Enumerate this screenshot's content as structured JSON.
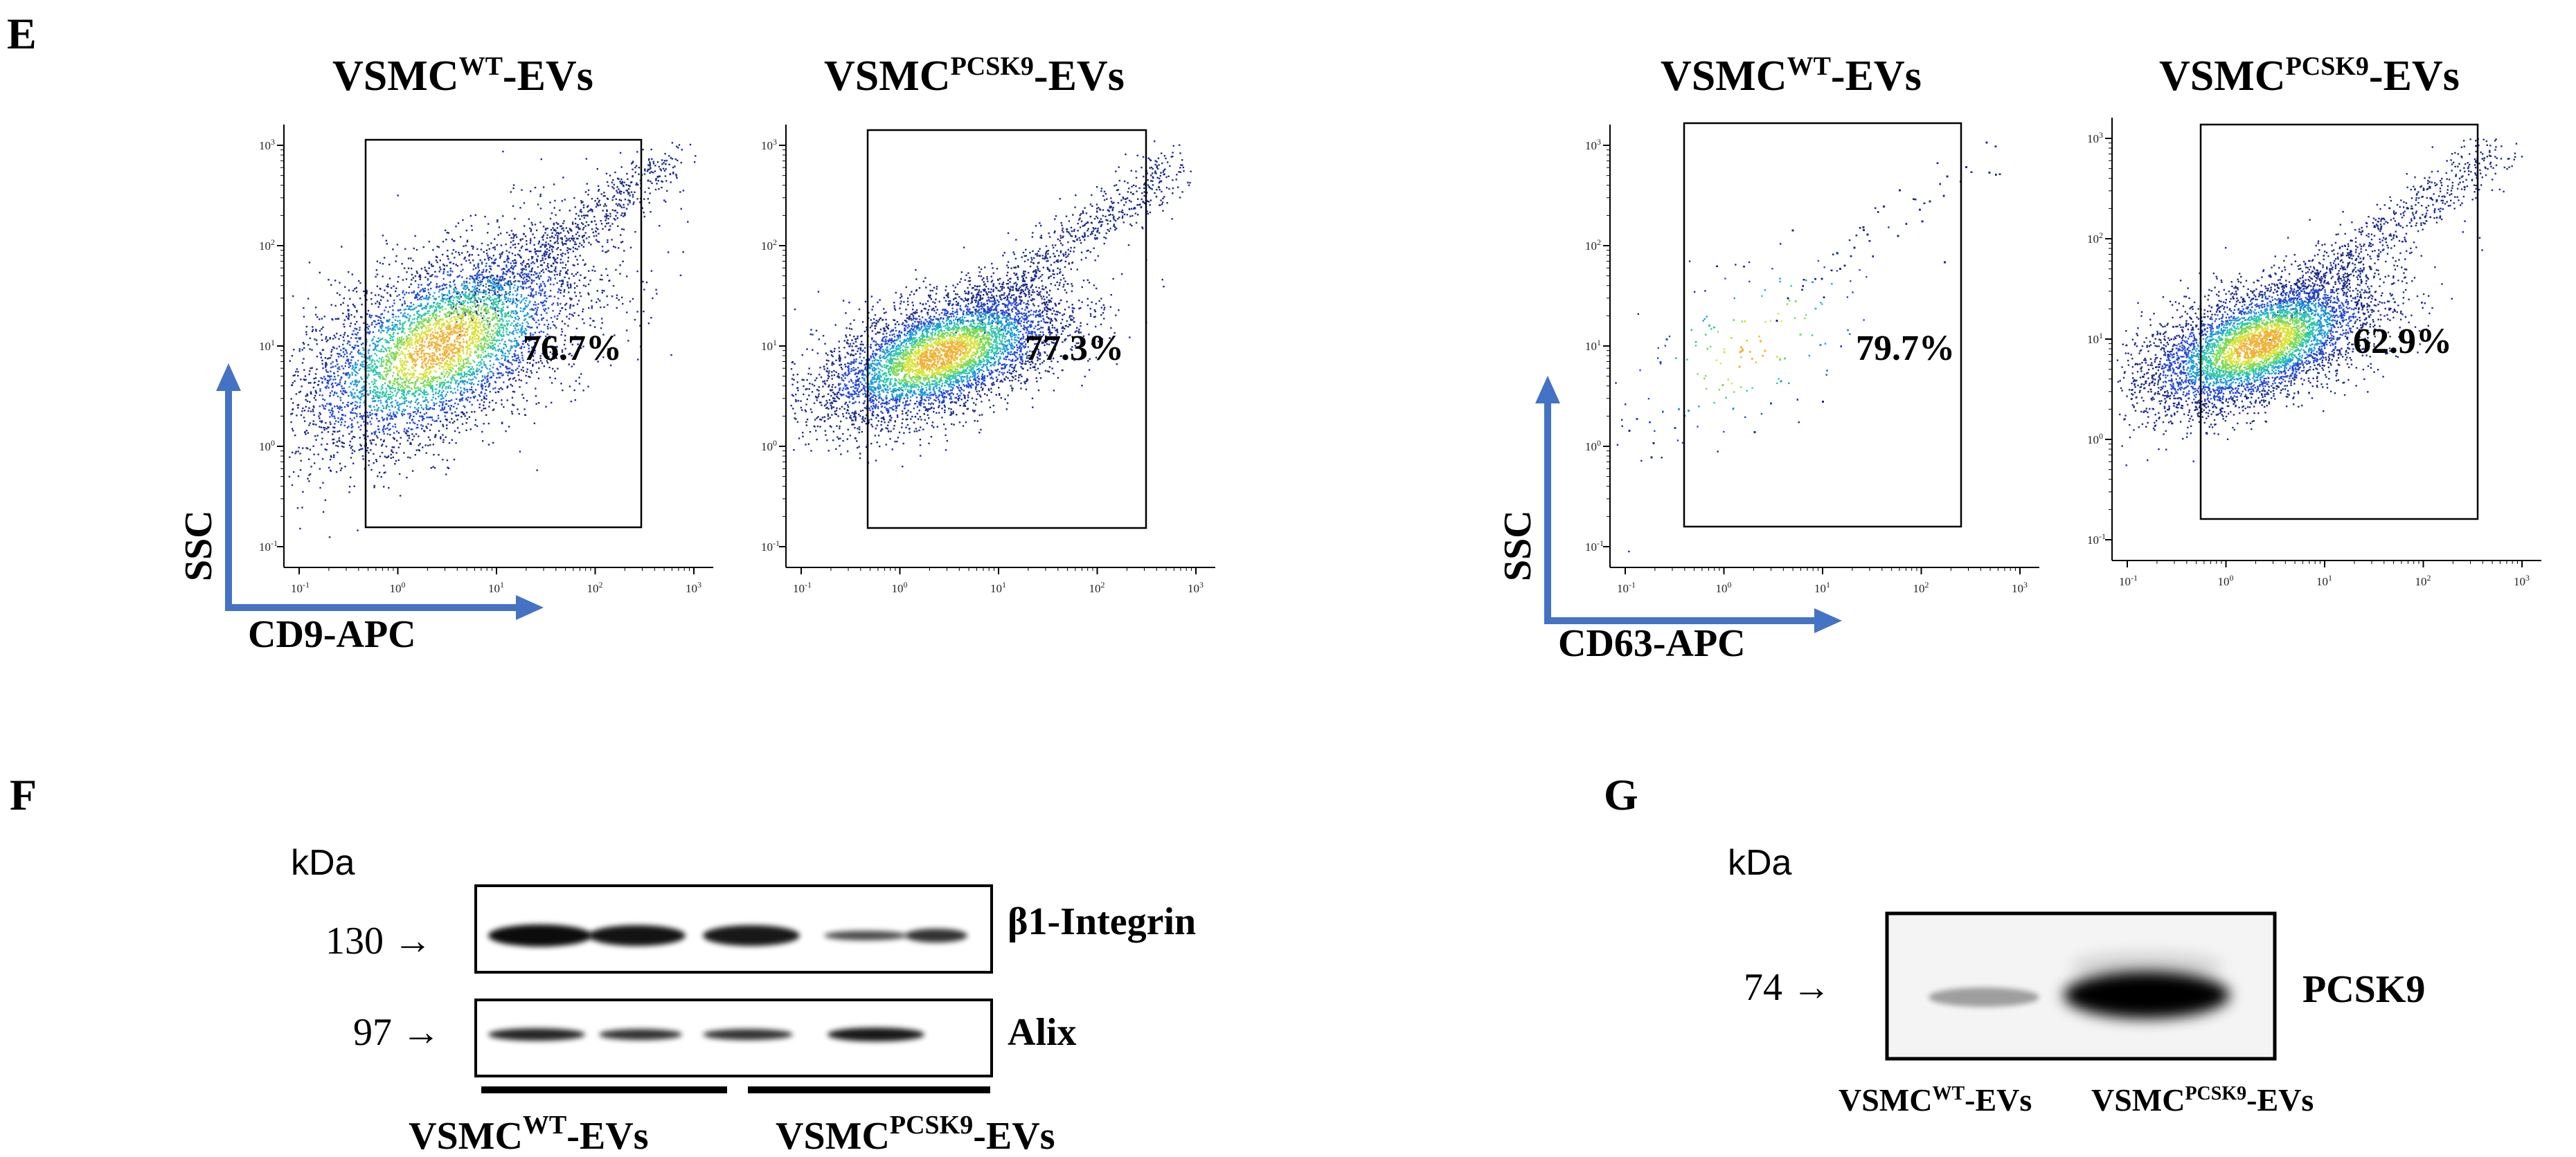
{
  "panels": {
    "E": "E",
    "F": "F",
    "G": "G"
  },
  "flow": {
    "plots": [
      {
        "title_main": "VSMC",
        "title_sup": "WT",
        "title_end": "-EVs",
        "percent": "76.7%",
        "gated_fraction": 0.767
      },
      {
        "title_main": "VSMC",
        "title_sup": "PCSK9",
        "title_end": "-EVs",
        "percent": "77.3%",
        "gated_fraction": 0.773
      },
      {
        "title_main": "VSMC",
        "title_sup": "WT",
        "title_end": "-EVs",
        "percent": "79.7%",
        "gated_fraction": 0.797
      },
      {
        "title_main": "VSMC",
        "title_sup": "PCSK9",
        "title_end": "-EVs",
        "percent": "62.9%",
        "gated_fraction": 0.629
      }
    ],
    "y_axis_label": "SSC",
    "x_axis_labels": [
      "CD9-APC",
      "CD63-APC"
    ],
    "x_tick_labels": [
      "10",
      "10",
      "10",
      "10",
      "10"
    ],
    "x_tick_exponents": [
      "-1",
      "0",
      "1",
      "2",
      "3"
    ],
    "y_tick_labels": [
      "10",
      "10",
      "10",
      "10",
      "10"
    ],
    "y_tick_exponents": [
      "-1",
      "0",
      "1",
      "2",
      "3"
    ],
    "axis_arrow_color": "#4472C4"
  },
  "western_F": {
    "unit_label": "kDa",
    "rows": [
      {
        "mw": "130",
        "arrow": "→",
        "protein": "β1-Integrin"
      },
      {
        "mw": "97",
        "arrow": "→",
        "protein": "Alix"
      }
    ],
    "groups": [
      {
        "main": "VSMC",
        "sup": "WT",
        "end": "-EVs"
      },
      {
        "main": "VSMC",
        "sup": "PCSK9",
        "end": "-EVs"
      }
    ]
  },
  "western_G": {
    "unit_label": "kDa",
    "mw": "74",
    "arrow": "→",
    "protein": "PCSK9",
    "lanes": [
      {
        "main": "VSMC",
        "sup": "WT",
        "end": "-EVs"
      },
      {
        "main": "VSMC",
        "sup": "PCSK9",
        "end": "-EVs"
      }
    ]
  }
}
